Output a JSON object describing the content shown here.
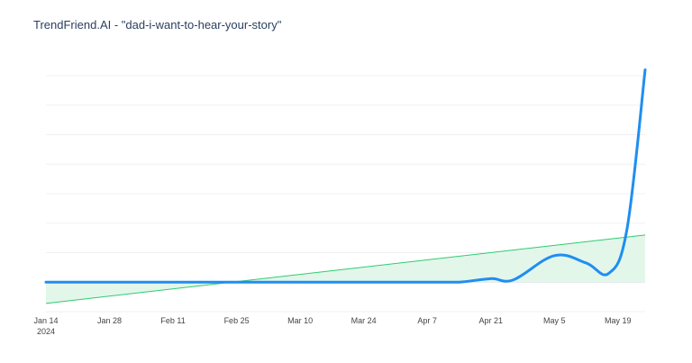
{
  "title": "TrendFriend.AI - \"dad-i-want-to-hear-your-story\"",
  "chart_data": {
    "type": "line",
    "title": "TrendFriend.AI - \"dad-i-want-to-hear-your-story\"",
    "xlabel": "",
    "ylabel": "",
    "x_tick_labels": [
      {
        "date": "2024-01-14",
        "label": "Jan 14",
        "sublabel": "2024"
      },
      {
        "date": "2024-01-28",
        "label": "Jan 28"
      },
      {
        "date": "2024-02-11",
        "label": "Feb 11"
      },
      {
        "date": "2024-02-25",
        "label": "Feb 25"
      },
      {
        "date": "2024-03-10",
        "label": "Mar 10"
      },
      {
        "date": "2024-03-24",
        "label": "Mar 24"
      },
      {
        "date": "2024-04-07",
        "label": "Apr 7"
      },
      {
        "date": "2024-04-21",
        "label": "Apr 21"
      },
      {
        "date": "2024-05-05",
        "label": "May 5"
      },
      {
        "date": "2024-05-19",
        "label": "May 19"
      }
    ],
    "y_tick_labels": [],
    "xlim": [
      "2024-01-14",
      "2024-05-25"
    ],
    "ylim": [
      -1,
      7
    ],
    "grid": {
      "x": false,
      "y": true
    },
    "legend": "none",
    "series": [
      {
        "type": "line",
        "color": "#1f8ef1",
        "points": [
          {
            "x": "2024-01-14",
            "y": 0
          },
          {
            "x": "2024-02-11",
            "y": 0
          },
          {
            "x": "2024-03-10",
            "y": 0
          },
          {
            "x": "2024-04-07",
            "y": 0
          },
          {
            "x": "2024-04-14",
            "y": 0
          },
          {
            "x": "2024-04-21",
            "y": 0.12
          },
          {
            "x": "2024-04-26",
            "y": 0.08
          },
          {
            "x": "2024-05-05",
            "y": 0.9
          },
          {
            "x": "2024-05-12",
            "y": 0.65
          },
          {
            "x": "2024-05-17",
            "y": 0.3
          },
          {
            "x": "2024-05-21",
            "y": 1.8
          },
          {
            "x": "2024-05-25",
            "y": 7.2
          }
        ]
      },
      {
        "type": "trend",
        "color": "#2ecc71",
        "fill": "#e3f6ea",
        "points": [
          {
            "x": "2024-01-14",
            "y": -0.72
          },
          {
            "x": "2024-05-25",
            "y": 1.6
          }
        ]
      }
    ]
  }
}
